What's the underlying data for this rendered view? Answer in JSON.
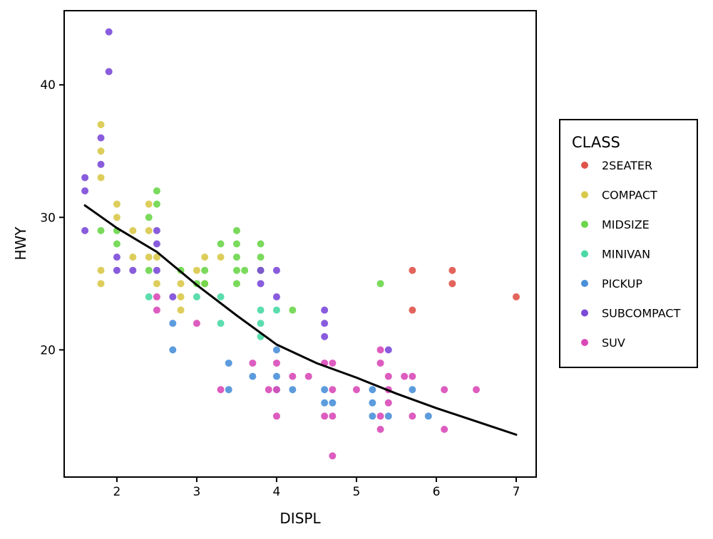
{
  "chart_data": {
    "type": "scatter",
    "title": "",
    "xlabel": "DISPL",
    "ylabel": "HWY",
    "xlim": [
      1.34,
      7.25
    ],
    "ylim": [
      10.4,
      45.6
    ],
    "xticks": [
      2,
      3,
      4,
      5,
      6,
      7
    ],
    "yticks": [
      20,
      30,
      40
    ],
    "grid": false,
    "legend": {
      "title": "CLASS",
      "placement": "right"
    },
    "series": [
      {
        "name": "2SEATER",
        "color": "#e0534a",
        "points": [
          [
            5.7,
            26
          ],
          [
            5.7,
            23
          ],
          [
            6.2,
            26
          ],
          [
            6.2,
            25
          ],
          [
            7.0,
            24
          ]
        ]
      },
      {
        "name": "COMPACT",
        "color": "#d9c94a",
        "points": [
          [
            1.8,
            37
          ],
          [
            1.8,
            35
          ],
          [
            1.8,
            33
          ],
          [
            1.8,
            26
          ],
          [
            1.8,
            25
          ],
          [
            2.0,
            31
          ],
          [
            2.0,
            30
          ],
          [
            2.2,
            29
          ],
          [
            2.2,
            27
          ],
          [
            2.4,
            31
          ],
          [
            2.4,
            29
          ],
          [
            2.4,
            27
          ],
          [
            2.5,
            27
          ],
          [
            2.5,
            25
          ],
          [
            2.8,
            25
          ],
          [
            2.8,
            24
          ],
          [
            2.8,
            23
          ],
          [
            3.0,
            26
          ],
          [
            3.1,
            27
          ],
          [
            3.3,
            27
          ],
          [
            3.1,
            25
          ]
        ]
      },
      {
        "name": "MIDSIZE",
        "color": "#6bd64a",
        "points": [
          [
            1.8,
            29
          ],
          [
            2.0,
            28
          ],
          [
            2.0,
            29
          ],
          [
            2.4,
            30
          ],
          [
            2.4,
            26
          ],
          [
            2.5,
            32
          ],
          [
            2.5,
            31
          ],
          [
            2.8,
            26
          ],
          [
            3.0,
            25
          ],
          [
            3.1,
            26
          ],
          [
            3.1,
            25
          ],
          [
            3.3,
            28
          ],
          [
            3.5,
            29
          ],
          [
            3.5,
            28
          ],
          [
            3.5,
            27
          ],
          [
            3.5,
            26
          ],
          [
            3.5,
            25
          ],
          [
            3.6,
            26
          ],
          [
            3.8,
            28
          ],
          [
            3.8,
            27
          ],
          [
            3.8,
            26
          ],
          [
            4.2,
            23
          ],
          [
            5.3,
            25
          ]
        ]
      },
      {
        "name": "MINIVAN",
        "color": "#4ad9a5",
        "points": [
          [
            2.4,
            24
          ],
          [
            3.0,
            24
          ],
          [
            3.3,
            24
          ],
          [
            3.3,
            22
          ],
          [
            3.8,
            23
          ],
          [
            3.8,
            22
          ],
          [
            3.8,
            21
          ],
          [
            4.0,
            23
          ]
        ]
      },
      {
        "name": "PICKUP",
        "color": "#4a90d9",
        "points": [
          [
            2.7,
            22
          ],
          [
            2.7,
            20
          ],
          [
            3.4,
            19
          ],
          [
            3.4,
            17
          ],
          [
            3.7,
            18
          ],
          [
            4.0,
            20
          ],
          [
            4.0,
            18
          ],
          [
            4.0,
            17
          ],
          [
            4.2,
            17
          ],
          [
            4.6,
            17
          ],
          [
            4.6,
            16
          ],
          [
            4.7,
            16
          ],
          [
            5.2,
            17
          ],
          [
            5.2,
            16
          ],
          [
            5.2,
            15
          ],
          [
            5.4,
            15
          ],
          [
            5.7,
            17
          ],
          [
            5.9,
            15
          ]
        ]
      },
      {
        "name": "SUBCOMPACT",
        "color": "#7c4ad9",
        "points": [
          [
            1.6,
            33
          ],
          [
            1.6,
            32
          ],
          [
            1.6,
            29
          ],
          [
            1.8,
            36
          ],
          [
            1.8,
            34
          ],
          [
            1.9,
            44
          ],
          [
            1.9,
            41
          ],
          [
            2.0,
            27
          ],
          [
            2.0,
            26
          ],
          [
            2.2,
            26
          ],
          [
            2.5,
            29
          ],
          [
            2.5,
            28
          ],
          [
            2.5,
            26
          ],
          [
            2.7,
            24
          ],
          [
            3.8,
            26
          ],
          [
            3.8,
            25
          ],
          [
            4.0,
            26
          ],
          [
            4.0,
            24
          ],
          [
            4.6,
            23
          ],
          [
            4.6,
            22
          ],
          [
            4.6,
            21
          ],
          [
            5.4,
            20
          ]
        ]
      },
      {
        "name": "SUV",
        "color": "#d94ab8",
        "points": [
          [
            2.5,
            24
          ],
          [
            2.5,
            23
          ],
          [
            3.0,
            22
          ],
          [
            3.3,
            17
          ],
          [
            3.7,
            19
          ],
          [
            3.9,
            17
          ],
          [
            4.0,
            19
          ],
          [
            4.0,
            17
          ],
          [
            4.0,
            15
          ],
          [
            4.2,
            18
          ],
          [
            4.4,
            18
          ],
          [
            4.6,
            19
          ],
          [
            4.6,
            15
          ],
          [
            4.7,
            19
          ],
          [
            4.7,
            17
          ],
          [
            4.7,
            15
          ],
          [
            4.7,
            12
          ],
          [
            5.0,
            17
          ],
          [
            5.3,
            20
          ],
          [
            5.3,
            19
          ],
          [
            5.3,
            15
          ],
          [
            5.3,
            14
          ],
          [
            5.4,
            18
          ],
          [
            5.4,
            17
          ],
          [
            5.4,
            16
          ],
          [
            5.6,
            18
          ],
          [
            5.7,
            18
          ],
          [
            5.7,
            15
          ],
          [
            6.1,
            17
          ],
          [
            6.1,
            14
          ],
          [
            6.5,
            17
          ]
        ]
      }
    ],
    "smooth_line": {
      "color": "#000000",
      "points": [
        [
          1.6,
          30.9
        ],
        [
          2.0,
          29.2
        ],
        [
          2.5,
          27.4
        ],
        [
          3.0,
          24.9
        ],
        [
          3.5,
          22.6
        ],
        [
          4.0,
          20.4
        ],
        [
          4.5,
          19.0
        ],
        [
          5.0,
          17.9
        ],
        [
          5.5,
          16.7
        ],
        [
          6.0,
          15.6
        ],
        [
          6.5,
          14.6
        ],
        [
          7.0,
          13.6
        ]
      ]
    }
  }
}
